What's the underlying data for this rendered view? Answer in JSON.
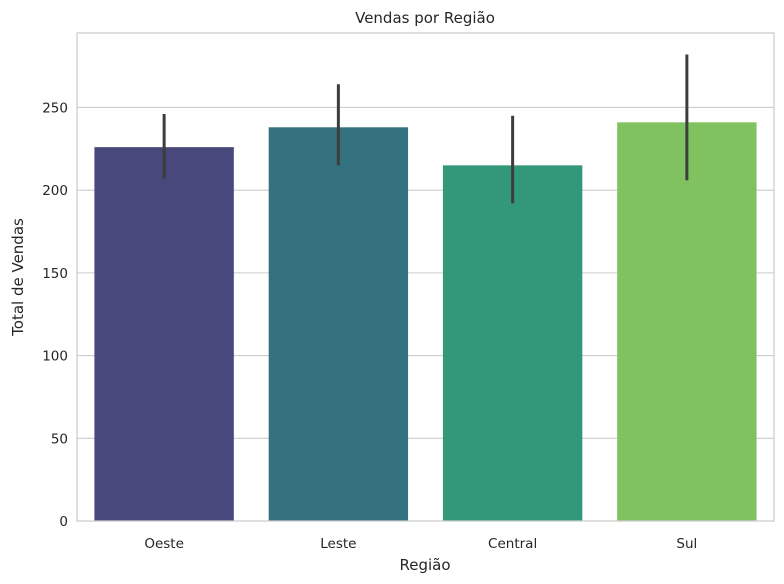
{
  "chart_data": {
    "type": "bar",
    "title": "Vendas por Região",
    "xlabel": "Região",
    "ylabel": "Total de Vendas",
    "categories": [
      "Oeste",
      "Leste",
      "Central",
      "Sul"
    ],
    "values": [
      226,
      238,
      215,
      241
    ],
    "error_low": [
      207,
      215,
      192,
      206
    ],
    "error_high": [
      246,
      264,
      245,
      282
    ],
    "colors": [
      "#48487c",
      "#33717f",
      "#33977a",
      "#80c260"
    ],
    "error_color": "#3d3d3d",
    "ylim": [
      0,
      295
    ],
    "yticks": [
      0,
      50,
      100,
      150,
      200,
      250
    ],
    "grid": "horizontal"
  }
}
